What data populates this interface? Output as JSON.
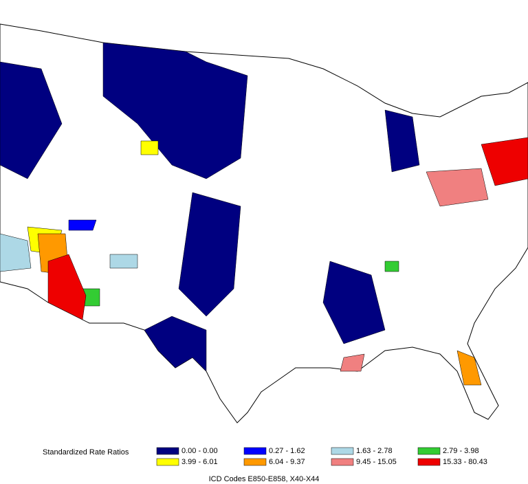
{
  "legend": {
    "title": "Standardized Rate Ratios",
    "items": [
      {
        "label": "0.00 - 0.00",
        "color": "#000080"
      },
      {
        "label": "0.27 - 1.62",
        "color": "#0000ff"
      },
      {
        "label": "1.63 - 2.78",
        "color": "#add8e6"
      },
      {
        "label": "2.79 - 3.98",
        "color": "#33cc33"
      },
      {
        "label": "3.99 - 6.01",
        "color": "#ffff00"
      },
      {
        "label": "6.04 - 9.37",
        "color": "#ff9900"
      },
      {
        "label": "9.45 - 15.05",
        "color": "#f08080"
      },
      {
        "label": "15.33 - 80.43",
        "color": "#ee0000"
      }
    ]
  },
  "caption": "ICD Codes E850-E858, X40-X44"
}
